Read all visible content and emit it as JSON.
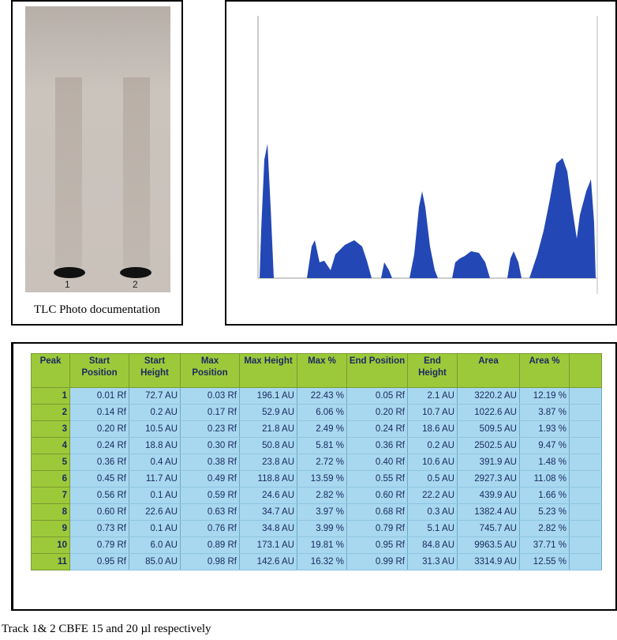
{
  "tlc": {
    "lanes": [
      "1",
      "2"
    ],
    "caption": "TLC Photo documentation"
  },
  "table": {
    "headers": [
      "Peak",
      "Start Position",
      "Start Height",
      "Max Position",
      "Max Height",
      "Max %",
      "End Position",
      "End Height",
      "Area",
      "Area %"
    ],
    "rows": [
      [
        "1",
        "0.01 Rf",
        "72.7 AU",
        "0.03 Rf",
        "196.1 AU",
        "22.43 %",
        "0.05 Rf",
        "2.1 AU",
        "3220.2 AU",
        "12.19 %"
      ],
      [
        "2",
        "0.14 Rf",
        "0.2 AU",
        "0.17 Rf",
        "52.9 AU",
        "6.06 %",
        "0.20 Rf",
        "10.7 AU",
        "1022.6 AU",
        "3.87 %"
      ],
      [
        "3",
        "0.20 Rf",
        "10.5 AU",
        "0.23 Rf",
        "21.8 AU",
        "2.49 %",
        "0.24 Rf",
        "18.6 AU",
        "509.5 AU",
        "1.93 %"
      ],
      [
        "4",
        "0.24 Rf",
        "18.8 AU",
        "0.30 Rf",
        "50.8 AU",
        "5.81 %",
        "0.36 Rf",
        "0.2 AU",
        "2502.5 AU",
        "9.47 %"
      ],
      [
        "5",
        "0.36 Rf",
        "0.4 AU",
        "0.38 Rf",
        "23.8 AU",
        "2.72 %",
        "0.40 Rf",
        "10.6 AU",
        "391.9 AU",
        "1.48 %"
      ],
      [
        "6",
        "0.45 Rf",
        "11.7 AU",
        "0.49 Rf",
        "118.8 AU",
        "13.59 %",
        "0.55 Rf",
        "0.5 AU",
        "2927.3 AU",
        "11.08 %"
      ],
      [
        "7",
        "0.56 Rf",
        "0.1 AU",
        "0.59 Rf",
        "24.6 AU",
        "2.82 %",
        "0.60 Rf",
        "22.2 AU",
        "439.9 AU",
        "1.66 %"
      ],
      [
        "8",
        "0.60 Rf",
        "22.6 AU",
        "0.63 Rf",
        "34.7 AU",
        "3.97 %",
        "0.68 Rf",
        "0.3 AU",
        "1382.4 AU",
        "5.23 %"
      ],
      [
        "9",
        "0.73 Rf",
        "0.1 AU",
        "0.76 Rf",
        "34.8 AU",
        "3.99 %",
        "0.79 Rf",
        "5.1 AU",
        "745.7 AU",
        "2.82 %"
      ],
      [
        "10",
        "0.79 Rf",
        "6.0 AU",
        "0.89 Rf",
        "173.1 AU",
        "19.81 %",
        "0.95 Rf",
        "84.8 AU",
        "9963.5 AU",
        "37.71 %"
      ],
      [
        "11",
        "0.95 Rf",
        "85.0 AU",
        "0.98 Rf",
        "142.6 AU",
        "16.32 %",
        "0.99 Rf",
        "31.3 AU",
        "3314.9 AU",
        "12.55 %"
      ]
    ]
  },
  "caption": "Track 1& 2 CBFE 15 and 20 µl respectively"
}
